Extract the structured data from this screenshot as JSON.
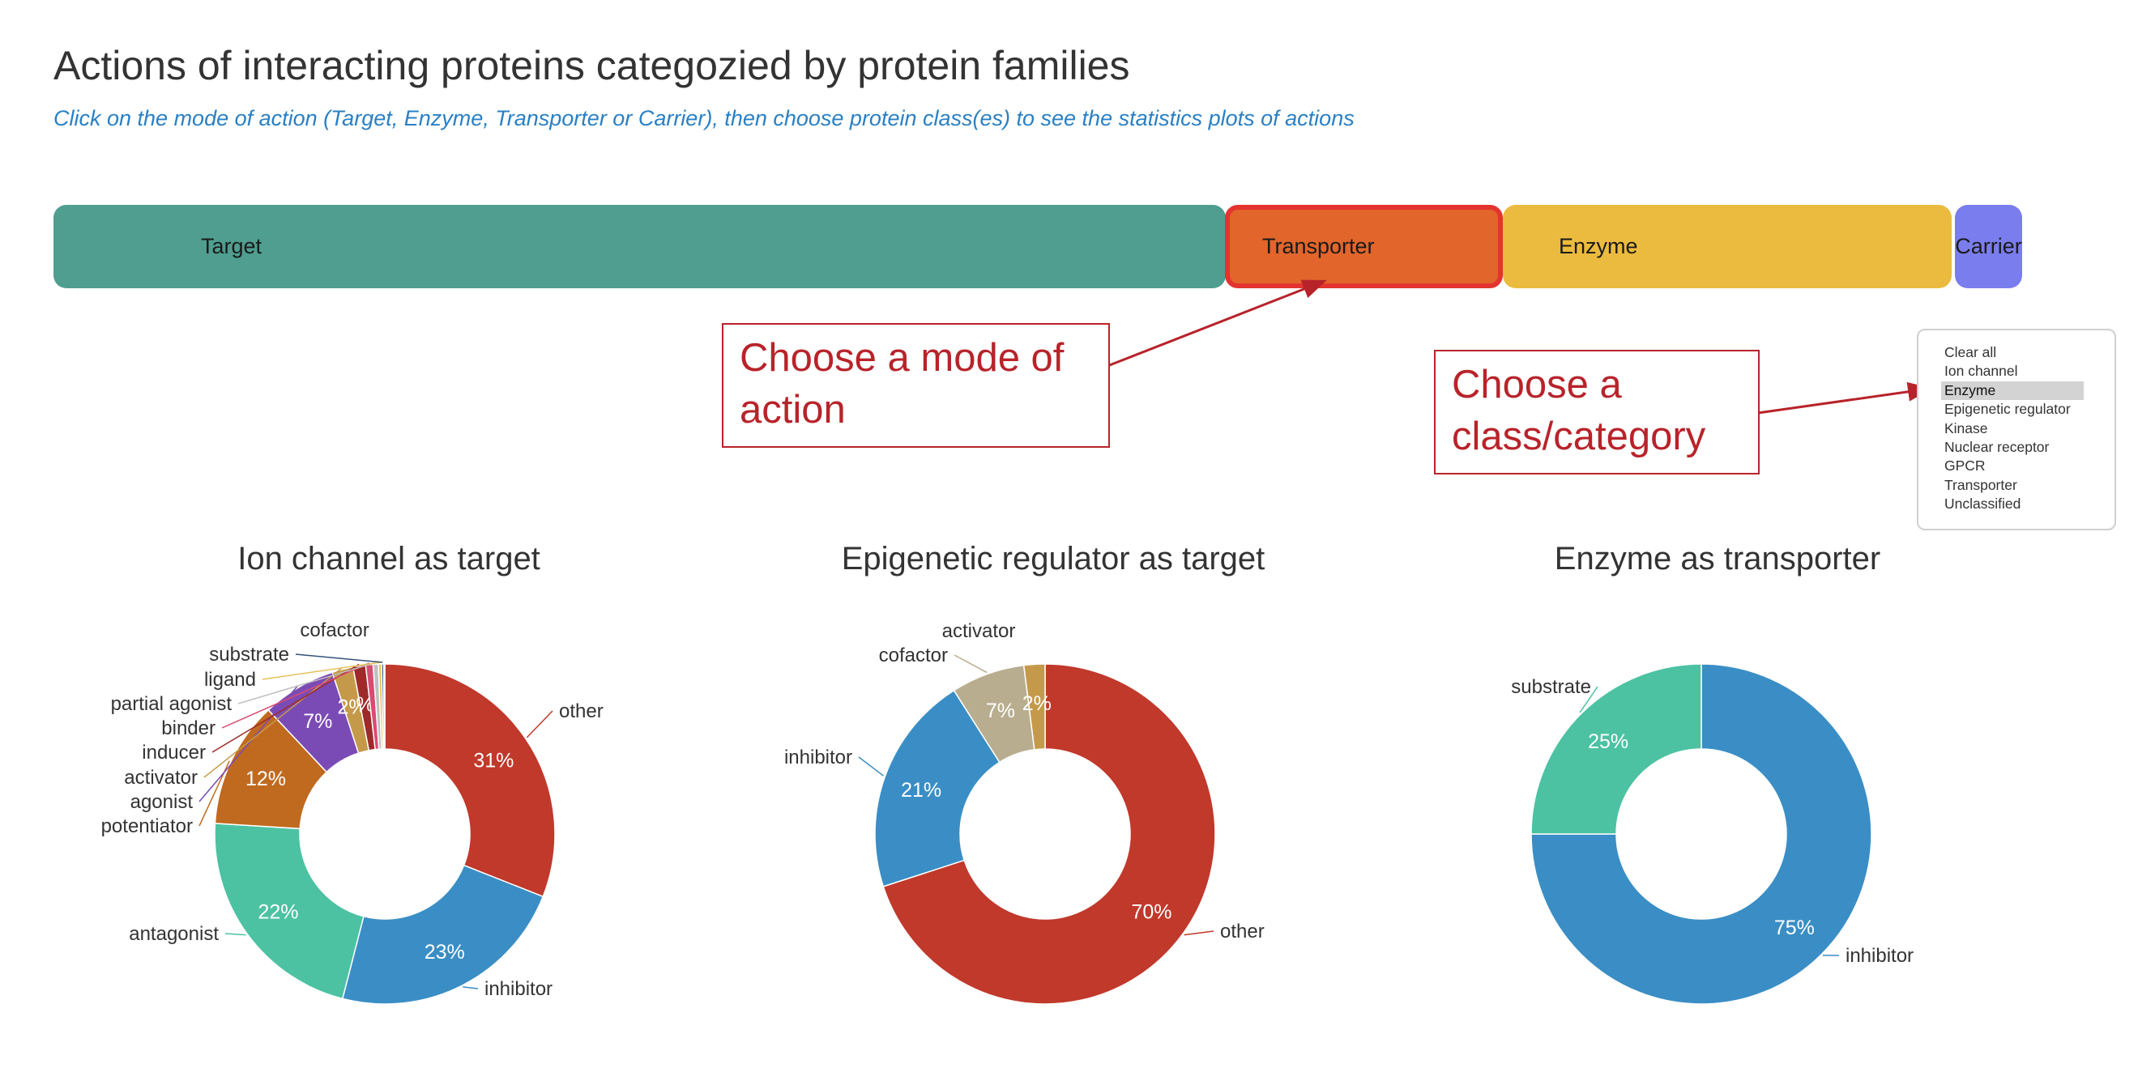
{
  "header": {
    "title": "Actions of interacting proteins categozied by protein families",
    "subtitle": "Click on the mode of action (Target, Enzyme, Transporter or Carrier), then choose protein class(es) to see the statistics plots of actions"
  },
  "mode_bar": {
    "target_label": "Target",
    "transporter_label": "Transporter",
    "enzyme_label": "Enzyme",
    "carrier_label": "Carrier",
    "selected": "Transporter",
    "colors": {
      "target": "#4f9e90",
      "transporter": "#e2652b",
      "enzyme": "#ebbb3f",
      "carrier": "#7a7ded"
    }
  },
  "annotations": {
    "mode_hint": "Choose a mode of action",
    "class_hint": "Choose a class/category",
    "color": "#b8232a"
  },
  "class_list": {
    "items": [
      "Clear all",
      "Ion channel",
      "Enzyme",
      "Epigenetic regulator",
      "Kinase",
      "Nuclear receptor",
      "GPCR",
      "Transporter",
      "Unclassified"
    ],
    "selected": "Enzyme"
  },
  "chart_data": [
    {
      "type": "pie",
      "title": "Ion channel as target",
      "slices": [
        {
          "label": "other",
          "value": 31,
          "color": "#c0392b",
          "pct_label": "31%"
        },
        {
          "label": "inhibitor",
          "value": 23,
          "color": "#3a8ec5",
          "pct_label": "23%"
        },
        {
          "label": "antagonist",
          "value": 22,
          "color": "#4cc2a2",
          "pct_label": "22%"
        },
        {
          "label": "potentiator",
          "value": 12,
          "color": "#c06a1f",
          "pct_label": "12%"
        },
        {
          "label": "agonist",
          "value": 7,
          "color": "#7b4bb5",
          "pct_label": "7%"
        },
        {
          "label": "activator",
          "value": 2,
          "color": "#c49a4a",
          "pct_label": "2%"
        },
        {
          "label": "inducer",
          "value": 1.2,
          "color": "#9e2a2a",
          "pct_label": "%"
        },
        {
          "label": "binder",
          "value": 0.7,
          "color": "#d94b73",
          "pct_label": ""
        },
        {
          "label": "partial agonist",
          "value": 0.5,
          "color": "#c0c0c0",
          "pct_label": ""
        },
        {
          "label": "ligand",
          "value": 0.3,
          "color": "#e5c15a",
          "pct_label": ""
        },
        {
          "label": "substrate",
          "value": 0.2,
          "color": "#33537a",
          "pct_label": ""
        },
        {
          "label": "cofactor",
          "value": 0.1,
          "color": "#b9b9b9",
          "pct_label": ""
        }
      ]
    },
    {
      "type": "pie",
      "title": "Epigenetic regulator as target",
      "slices": [
        {
          "label": "other",
          "value": 70,
          "color": "#c0392b",
          "pct_label": "70%"
        },
        {
          "label": "inhibitor",
          "value": 21,
          "color": "#3a8ec5",
          "pct_label": "21%"
        },
        {
          "label": "cofactor",
          "value": 7,
          "color": "#b9ad8f",
          "pct_label": "7%"
        },
        {
          "label": "activator",
          "value": 2,
          "color": "#c49a4a",
          "pct_label": "2%"
        }
      ]
    },
    {
      "type": "pie",
      "title": "Enzyme as transporter",
      "slices": [
        {
          "label": "inhibitor",
          "value": 75,
          "color": "#3a8ec5",
          "pct_label": "75%"
        },
        {
          "label": "substrate",
          "value": 25,
          "color": "#4cc2a2",
          "pct_label": "25%"
        }
      ]
    }
  ]
}
